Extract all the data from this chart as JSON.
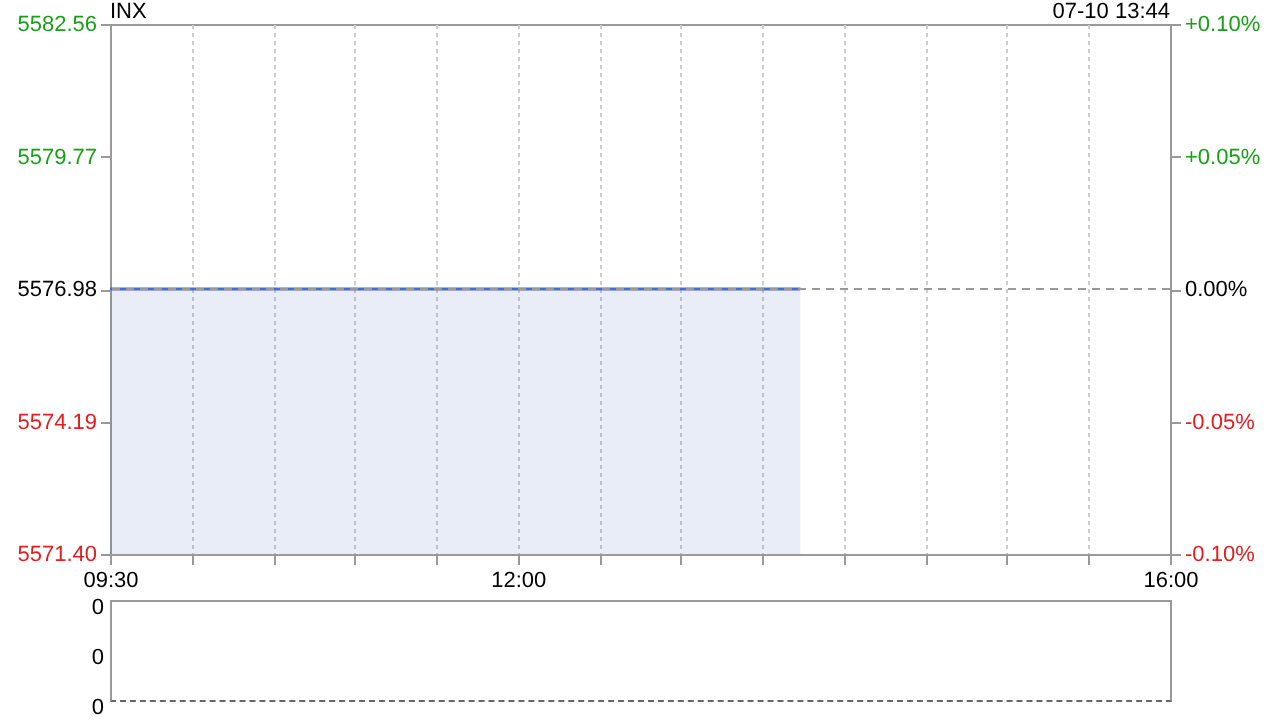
{
  "chart_data": [
    {
      "type": "area",
      "title": "INX",
      "annotations": [
        "07-10 13:44"
      ],
      "x": [
        9.5,
        13.7333
      ],
      "series": [
        {
          "color": "#4a6cc4",
          "values": [
            5576.98,
            5576.98
          ]
        }
      ],
      "xlim": [
        9.5,
        16
      ],
      "xticks": [
        {
          "value": 9.5,
          "label": "09:30"
        },
        {
          "value": 10,
          "label": null
        },
        {
          "value": 10.5,
          "label": null
        },
        {
          "value": 11,
          "label": null
        },
        {
          "value": 11.5,
          "label": null
        },
        {
          "value": 12,
          "label": "12:00"
        },
        {
          "value": 12.5,
          "label": null
        },
        {
          "value": 13,
          "label": null
        },
        {
          "value": 13.5,
          "label": null
        },
        {
          "value": 14,
          "label": null
        },
        {
          "value": 14.5,
          "label": null
        },
        {
          "value": 15,
          "label": null
        },
        {
          "value": 15.5,
          "label": null
        },
        {
          "value": 16,
          "label": "16:00"
        }
      ],
      "ylim": [
        5571.4,
        5582.56
      ],
      "yticks": [
        {
          "value": 5571.4,
          "label": "5571.40"
        },
        {
          "value": 5574.19,
          "label": "5574.19"
        },
        {
          "value": 5576.98,
          "label": "5576.98"
        },
        {
          "value": 5579.77,
          "label": "5579.77"
        },
        {
          "value": 5582.56,
          "label": "5582.56"
        }
      ],
      "y2lim": [
        -0.1,
        0.1
      ],
      "y2ticks": [
        {
          "value": -0.1,
          "label": "-0.10%"
        },
        {
          "value": -0.05,
          "label": "-0.05%"
        },
        {
          "value": 0,
          "label": "0.00%"
        },
        {
          "value": 0.05,
          "label": "+0.05%"
        },
        {
          "value": 0.1,
          "label": "+0.10%"
        }
      ],
      "ref_lines": [
        {
          "axis": "y2",
          "value": 0,
          "color": "#999999",
          "line_style": "dashed"
        }
      ],
      "grid": "x"
    },
    {
      "type": "other",
      "annotations": [
        "0",
        "0",
        "0"
      ]
    }
  ]
}
